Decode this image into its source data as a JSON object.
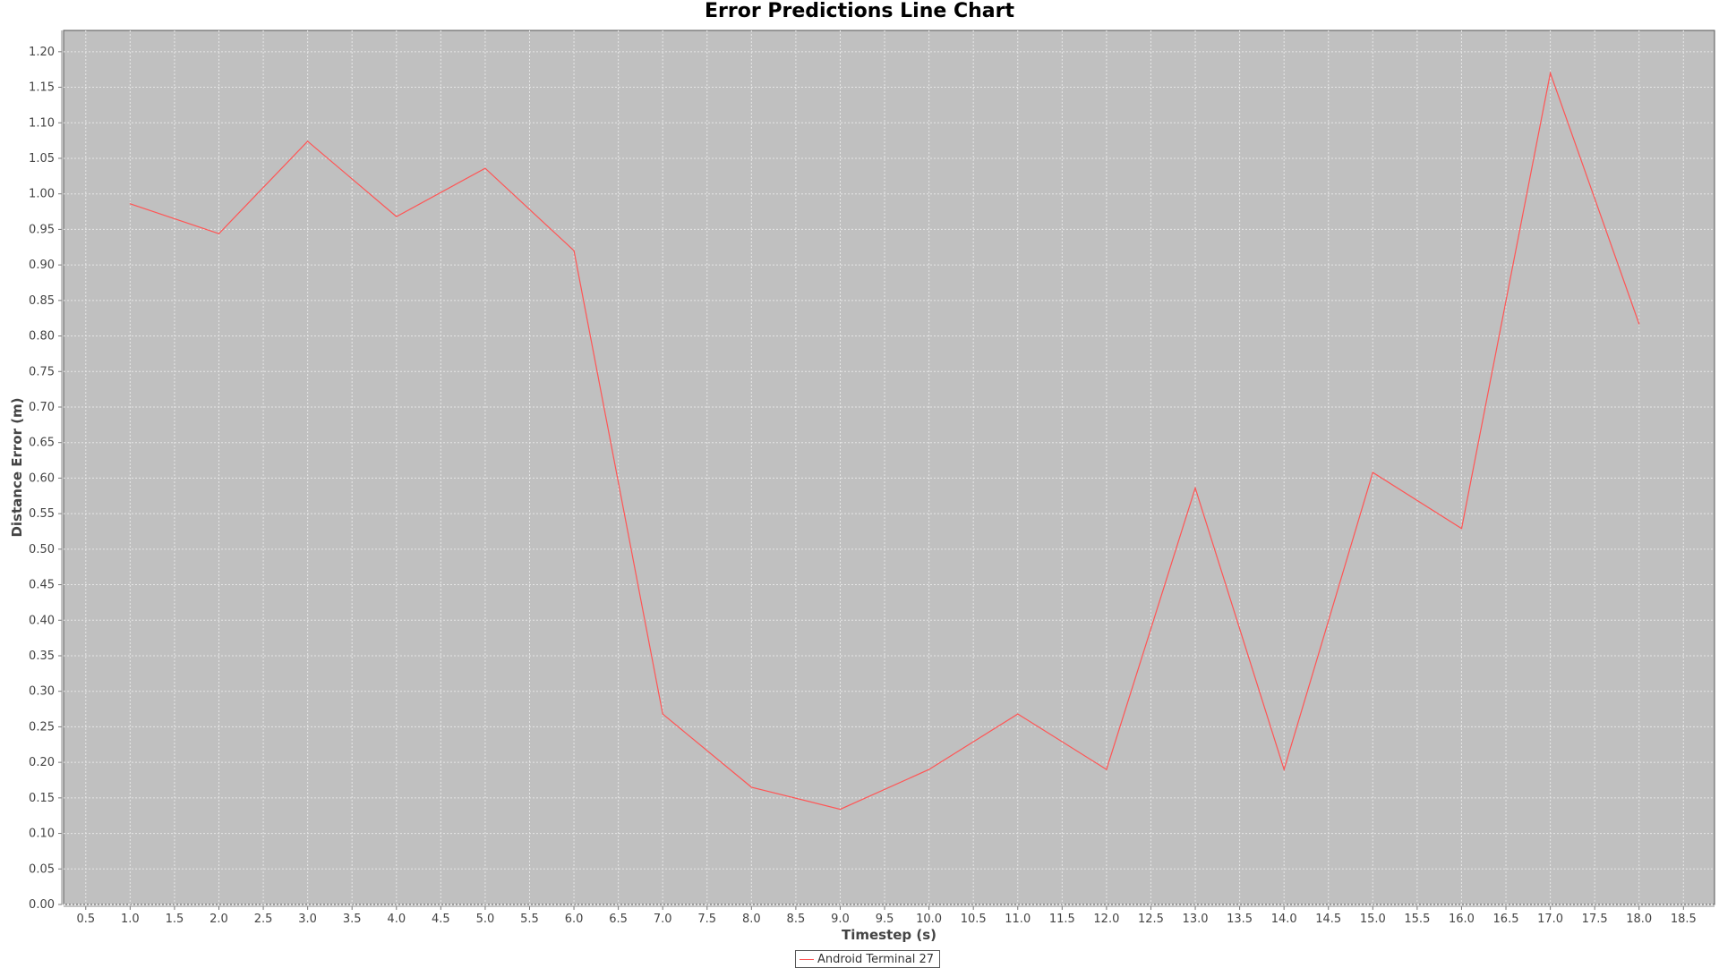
{
  "chart_data": {
    "type": "line",
    "title": "Error Predictions Line Chart",
    "xlabel": "Timestep (s)",
    "ylabel": "Distance Error (m)",
    "xlim": [
      0.25,
      18.85
    ],
    "ylim": [
      0.0,
      1.23
    ],
    "x_ticks": [
      "0.5",
      "1.0",
      "1.5",
      "2.0",
      "2.5",
      "3.0",
      "3.5",
      "4.0",
      "4.5",
      "5.0",
      "5.5",
      "6.0",
      "6.5",
      "7.0",
      "7.5",
      "8.0",
      "8.5",
      "9.0",
      "9.5",
      "10.0",
      "10.5",
      "11.0",
      "11.5",
      "12.0",
      "12.5",
      "13.0",
      "13.5",
      "14.0",
      "14.5",
      "15.0",
      "15.5",
      "16.0",
      "16.5",
      "17.0",
      "17.5",
      "18.0",
      "18.5"
    ],
    "y_ticks": [
      "0.00",
      "0.05",
      "0.10",
      "0.15",
      "0.20",
      "0.25",
      "0.30",
      "0.35",
      "0.40",
      "0.45",
      "0.50",
      "0.55",
      "0.60",
      "0.65",
      "0.70",
      "0.75",
      "0.80",
      "0.85",
      "0.90",
      "0.95",
      "1.00",
      "1.05",
      "1.10",
      "1.15",
      "1.20"
    ],
    "grid": true,
    "legend_position": "bottom-center",
    "background_color": "#c0c0c0",
    "series": [
      {
        "name": "Android Terminal 27",
        "color": "#ff5555",
        "x": [
          1.0,
          2.0,
          3.0,
          4.0,
          5.0,
          6.0,
          7.0,
          8.0,
          9.0,
          10.0,
          11.0,
          12.0,
          13.0,
          14.0,
          15.0,
          16.0,
          17.0,
          18.0
        ],
        "y": [
          0.986,
          0.944,
          1.074,
          0.968,
          1.036,
          0.92,
          0.268,
          0.165,
          0.134,
          0.19,
          0.268,
          0.19,
          0.586,
          0.19,
          0.608,
          0.529,
          1.17,
          0.817
        ]
      }
    ]
  }
}
